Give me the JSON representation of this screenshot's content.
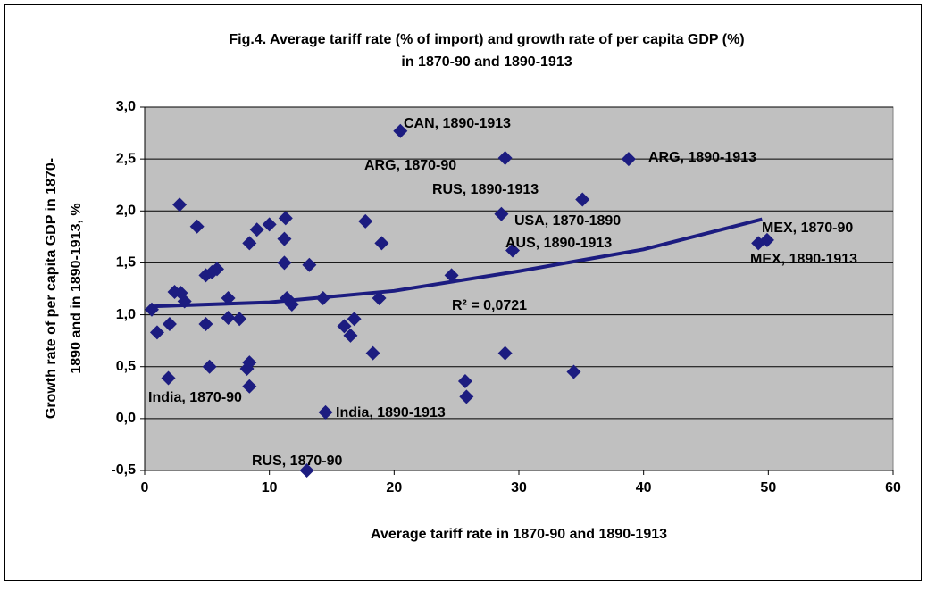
{
  "chart_data": {
    "type": "scatter",
    "title": [
      "Fig.4. Average tariff rate (% of import) and growth rate of per capita GDP (%)",
      "in 1870-90 and 1890-1913"
    ],
    "x_label": "Average tariff rate in 1870-90 and 1890-1913",
    "y_label": [
      "Growth rate of per capita GDP in 1870-",
      "1890 and in 1890-1913, %"
    ],
    "xlim": [
      0,
      60
    ],
    "xticks": [
      0,
      10,
      20,
      30,
      40,
      50,
      60
    ],
    "ylim": [
      -0.5,
      3
    ],
    "yticks": [
      {
        "value": -0.5,
        "label": "-0,5"
      },
      {
        "value": 0,
        "label": "0,0"
      },
      {
        "value": 0.5,
        "label": "0,5"
      },
      {
        "value": 1,
        "label": "1,0"
      },
      {
        "value": 1.5,
        "label": "1,5"
      },
      {
        "value": 2,
        "label": "2,0"
      },
      {
        "value": 2.5,
        "label": "2,5"
      },
      {
        "value": 3,
        "label": "3,0"
      }
    ],
    "grid": true,
    "series": [
      {
        "color": "#1c1c80",
        "x": [
          0.57,
          1.0,
          2.0,
          1.9,
          2.4,
          2.8,
          2.9,
          3.2,
          4.2,
          4.9,
          4.9,
          5.2,
          5.4,
          5.8,
          6.7,
          6.7,
          7.6,
          8.4,
          8.4,
          8.2,
          8.4,
          9.0,
          10.0,
          11.3,
          11.2,
          11.2,
          11.4,
          11.8,
          13.2,
          14.3,
          14.5,
          16.0,
          16.5,
          16.8,
          17.7,
          18.3,
          18.8,
          19.0,
          20.5,
          24.6,
          25.7,
          25.8,
          28.6,
          28.9,
          28.9,
          29.5,
          34.4,
          35.1,
          38.8,
          49.2,
          49.9,
          13.0
        ],
        "values": [
          1.05,
          0.83,
          0.91,
          0.39,
          1.22,
          2.06,
          1.21,
          1.13,
          1.85,
          0.91,
          1.38,
          0.5,
          1.41,
          1.44,
          1.16,
          0.97,
          0.96,
          1.69,
          0.31,
          0.48,
          0.54,
          1.82,
          1.87,
          1.93,
          1.73,
          1.5,
          1.16,
          1.1,
          1.48,
          1.16,
          0.06,
          0.89,
          0.8,
          0.96,
          1.9,
          0.63,
          1.16,
          1.69,
          2.77,
          1.38,
          0.36,
          0.21,
          1.97,
          2.51,
          0.63,
          1.62,
          0.45,
          2.11,
          2.5,
          1.69,
          1.72,
          -0.5
        ]
      }
    ],
    "trendline": {
      "color": "#1c1c80",
      "x": [
        0.5,
        10,
        20,
        30,
        40,
        49.5
      ],
      "values": [
        1.08,
        1.12,
        1.23,
        1.42,
        1.63,
        1.92
      ]
    },
    "annotations": [
      "CAN, 1890-1913",
      "ARG, 1870-90",
      "ARG, 1890-1913",
      "RUS, 1890-1913",
      "USA, 1870-1890",
      "AUS, 1890-1913",
      "MEX, 1870-90",
      "MEX, 1890-1913",
      "R² = 0,0721",
      "India, 1870-90",
      "India, 1890-1913",
      "RUS, 1870-90"
    ]
  }
}
